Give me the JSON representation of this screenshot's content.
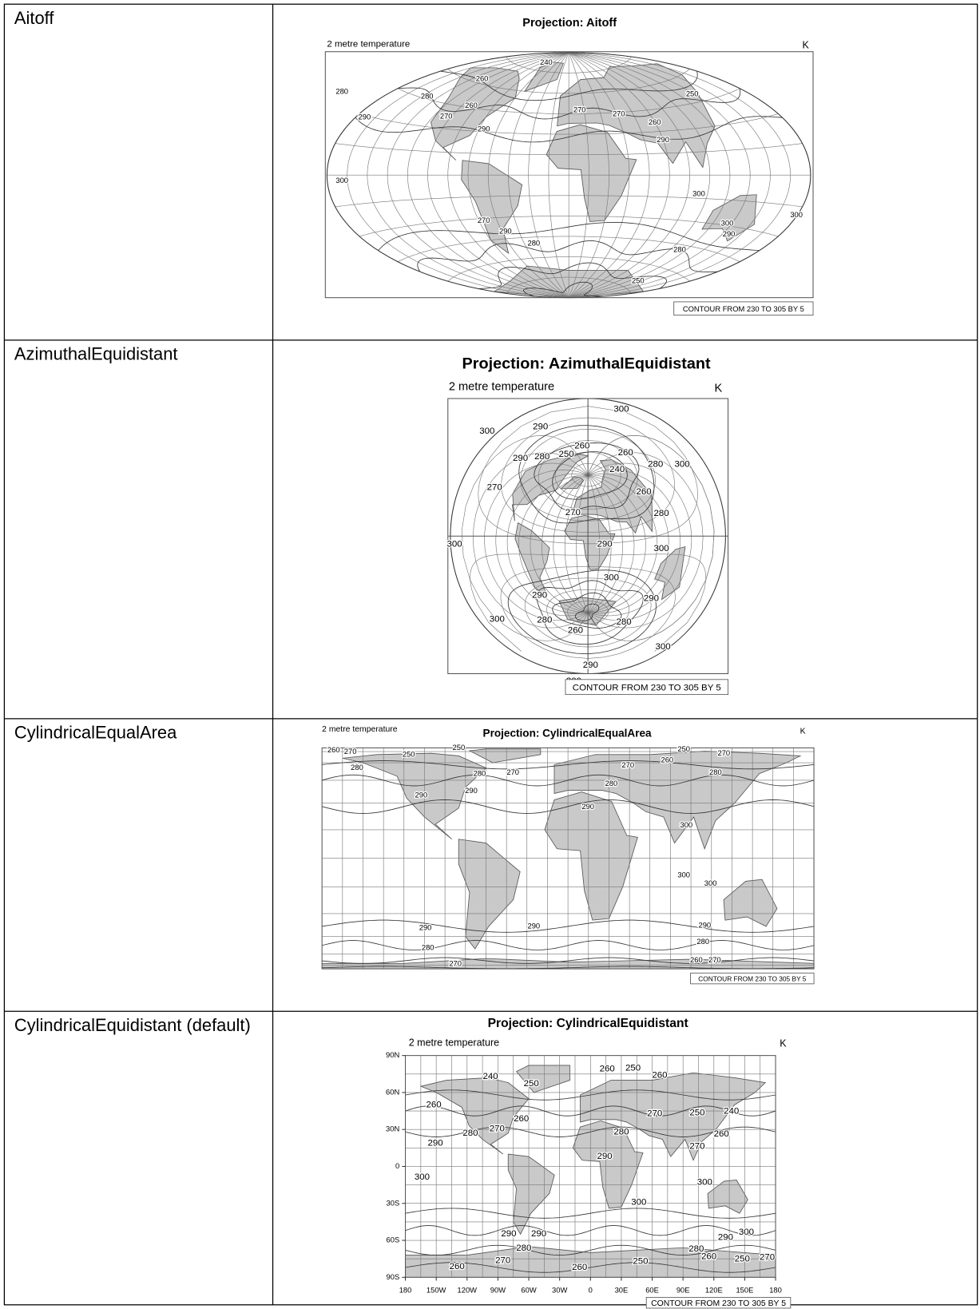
{
  "rows": [
    {
      "label": "Aitoff",
      "map": {
        "title": "Projection: Aitoff",
        "subtitle": "2 metre temperature",
        "units": "K",
        "contour_info": "CONTOUR FROM 230 TO 305 BY 5",
        "contour_labels": [
          "240",
          "260",
          "280",
          "280",
          "260",
          "290",
          "270",
          "290",
          "270",
          "270",
          "260",
          "250",
          "290",
          "300",
          "300",
          "300",
          "290",
          "290",
          "280",
          "280",
          "270",
          "300",
          "250"
        ]
      }
    },
    {
      "label": "AzimuthalEquidistant",
      "map": {
        "title": "Projection: AzimuthalEquidistant",
        "subtitle": "2 metre temperature",
        "units": "K",
        "contour_info": "CONTOUR FROM 230 TO 305 BY 5",
        "contour_labels": [
          "300",
          "290",
          "300",
          "260",
          "260",
          "240",
          "250",
          "280",
          "290",
          "280",
          "300",
          "270",
          "270",
          "260",
          "280",
          "290",
          "300",
          "300",
          "300",
          "290",
          "280",
          "260",
          "290",
          "280",
          "300",
          "300",
          "290",
          "300"
        ]
      }
    },
    {
      "label": "CylindricalEqualArea",
      "map": {
        "title": "Projection: CylindricalEqualArea",
        "subtitle": "2 metre temperature",
        "units": "K",
        "contour_info": "CONTOUR FROM 230 TO 305 BY 5",
        "contour_labels": [
          "260",
          "270",
          "280",
          "250",
          "250",
          "280",
          "270",
          "290",
          "290",
          "280",
          "260",
          "250",
          "270",
          "280",
          "270",
          "290",
          "300",
          "300",
          "300",
          "290",
          "290",
          "290",
          "280",
          "280",
          "270",
          "260",
          "270"
        ]
      }
    },
    {
      "label": "CylindricalEquidistant (default)",
      "map": {
        "title": "Projection: CylindricalEquidistant",
        "subtitle": "2 metre temperature",
        "units": "K",
        "contour_info": "CONTOUR FROM 230 TO 305 BY 5",
        "yticks": [
          "90N",
          "60N",
          "30N",
          "0",
          "30S",
          "60S",
          "90S"
        ],
        "xticks": [
          "180",
          "150W",
          "120W",
          "90W",
          "60W",
          "30W",
          "0",
          "30E",
          "60E",
          "90E",
          "120E",
          "150E",
          "180"
        ],
        "contour_labels": [
          "240",
          "260",
          "250",
          "260",
          "250",
          "260",
          "280",
          "270",
          "260",
          "290",
          "280",
          "290",
          "270",
          "250",
          "240",
          "260",
          "270",
          "300",
          "300",
          "300",
          "300",
          "290",
          "290",
          "290",
          "280",
          "280",
          "260",
          "270",
          "260",
          "250",
          "260",
          "250",
          "270"
        ]
      }
    }
  ]
}
